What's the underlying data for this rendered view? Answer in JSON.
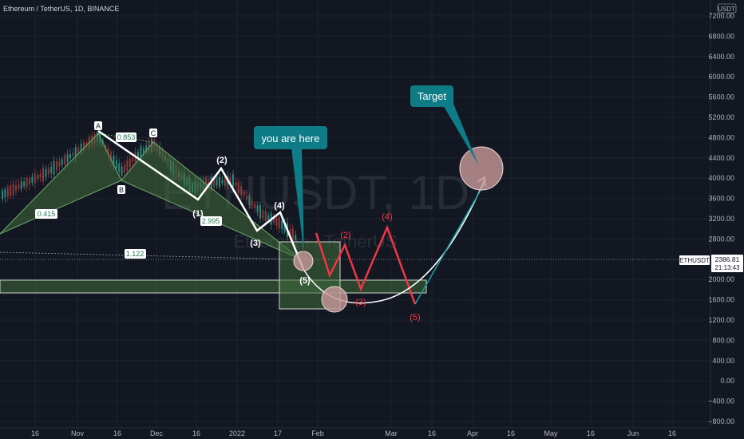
{
  "header": {
    "symbol_line": "Ethereum / TetherUS, 1D, BINANCE",
    "currency": "USDT"
  },
  "watermark": {
    "big": "ETHUSDT, 1D",
    "small": "Ethereum / TetherUS"
  },
  "price_tag": {
    "symbol": "ETHUSDT",
    "price": "2386.81",
    "countdown": "21:13:43"
  },
  "callouts": {
    "you_are_here": "you are here",
    "target": "Target"
  },
  "colors": {
    "background": "#131722",
    "grid": "#1e222d",
    "axis_text": "#b2b5be",
    "harmonic_fill": "#3f6b3a",
    "callout_bg": "#0e7c86",
    "wave_red": "#f23645",
    "circle_fill": "#c99a9a",
    "up_candle": "#2a8a7d",
    "down_candle": "#8a3a3a"
  },
  "chart_data": {
    "type": "line",
    "title": "Ethereum / TetherUS, 1D, BINANCE",
    "y_axis": {
      "unit": "USDT",
      "range": [
        -900,
        7600
      ],
      "ticks": [
        7200,
        6800,
        6400,
        6000,
        5600,
        5200,
        4800,
        4400,
        4000,
        3600,
        3200,
        2800,
        2000,
        1600,
        1200,
        800,
        400,
        0,
        -400,
        -800
      ],
      "tick_labels": [
        "7200.00",
        "6800.00",
        "6400.00",
        "6000.00",
        "5600.00",
        "5200.00",
        "4800.00",
        "4400.00",
        "4000.00",
        "3600.00",
        "3200.00",
        "2800.00",
        "2000.00",
        "1600.00",
        "1200.00",
        "800.00",
        "400.00",
        "0.00",
        "−400.00",
        "−800.00"
      ]
    },
    "x_axis": {
      "tick_labels": [
        "16",
        "Nov",
        "16",
        "Dec",
        "16",
        "2022",
        "17",
        "Feb",
        "Mar",
        "16",
        "Apr",
        "16",
        "May",
        "16",
        "Jun",
        "16"
      ]
    },
    "current_price": 2386.81,
    "harmonic_pattern": {
      "points": [
        "A",
        "B",
        "C"
      ],
      "ratios": [
        "0.853",
        "0.415",
        "2.995",
        "1.122"
      ]
    },
    "elliott_wave_white": {
      "labels": [
        "(1)",
        "(2)",
        "(3)",
        "(4)",
        "(5)"
      ]
    },
    "elliott_wave_red": {
      "labels": [
        "(2)",
        "(3)",
        "(4)",
        "(5)"
      ]
    },
    "target_zone_price": 4250
  },
  "labels": {
    "A": "A",
    "B": "B",
    "C": "C",
    "r0853": "0.853",
    "r0415": "0.415",
    "r2995": "2.995",
    "r1122": "1.122",
    "w1": "(1)",
    "w2": "(2)",
    "w3": "(3)",
    "w4": "(4)",
    "w5": "(5)",
    "r2": "(2)",
    "r3": "(3)",
    "r4": "(4)",
    "r5": "(5)"
  }
}
